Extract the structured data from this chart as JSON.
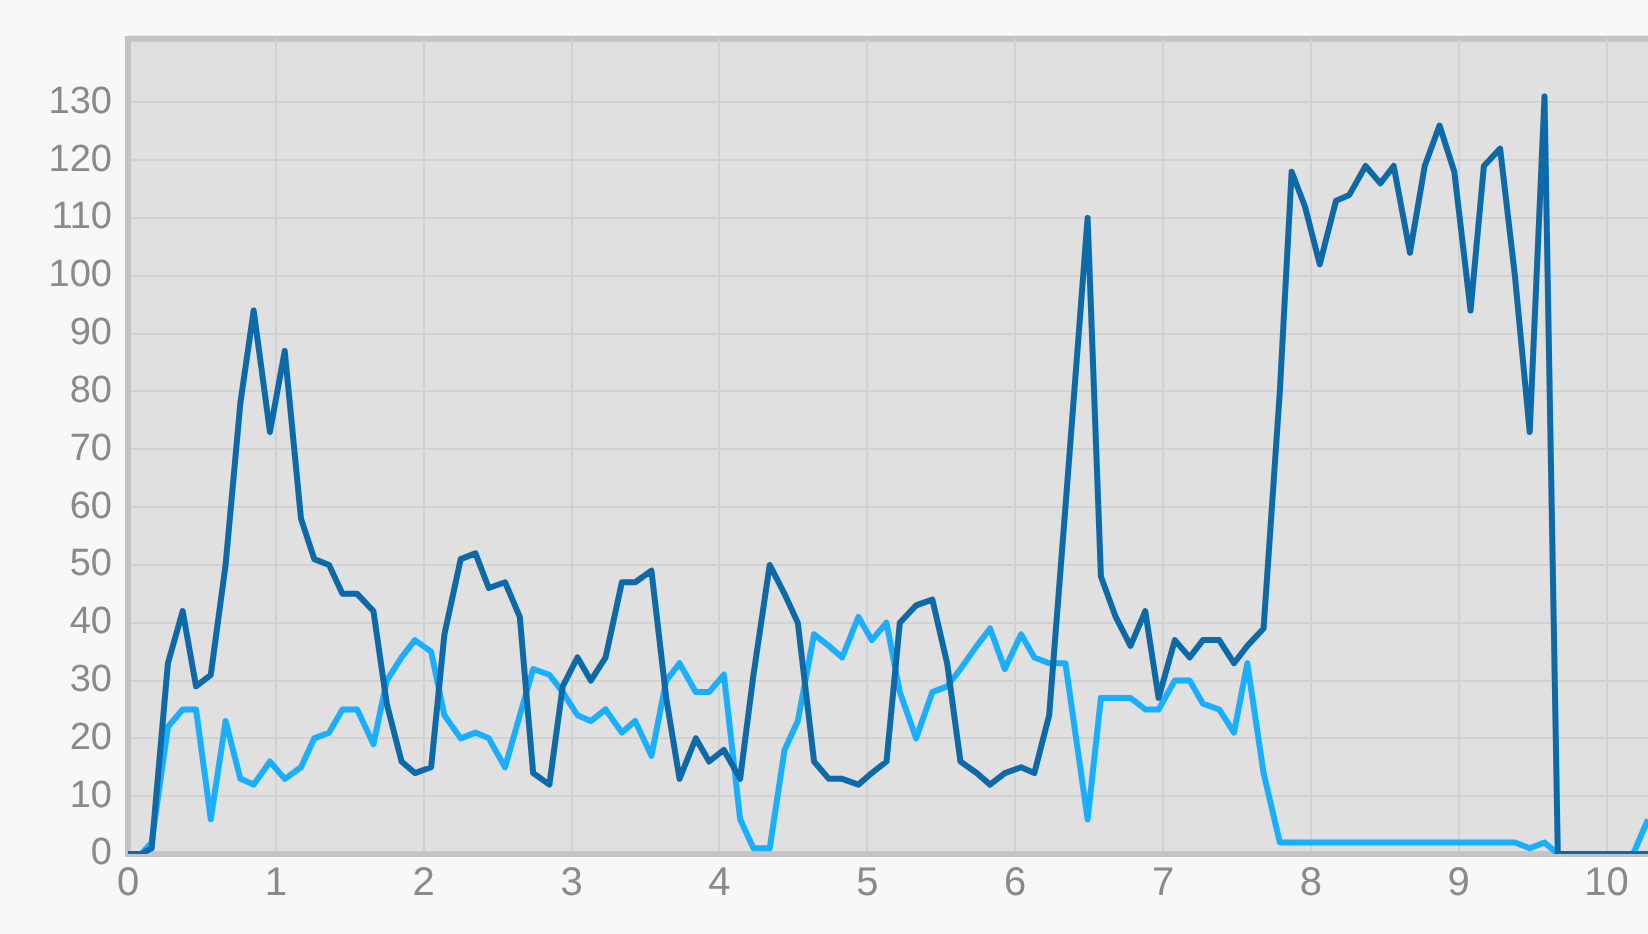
{
  "chart_data": {
    "type": "line",
    "x": [
      0,
      0.09,
      0.16,
      0.27,
      0.37,
      0.46,
      0.56,
      0.66,
      0.76,
      0.85,
      0.96,
      1.06,
      1.17,
      1.26,
      1.36,
      1.45,
      1.55,
      1.66,
      1.75,
      1.85,
      1.94,
      2.05,
      2.14,
      2.25,
      2.35,
      2.44,
      2.55,
      2.65,
      2.74,
      2.85,
      2.94,
      3.04,
      3.13,
      3.23,
      3.34,
      3.43,
      3.54,
      3.64,
      3.73,
      3.84,
      3.93,
      4.03,
      4.14,
      4.23,
      4.34,
      4.44,
      4.53,
      4.64,
      4.74,
      4.83,
      4.94,
      5.03,
      5.13,
      5.22,
      5.33,
      5.44,
      5.54,
      5.63,
      5.74,
      5.83,
      5.93,
      6.04,
      6.13,
      6.23,
      6.34,
      6.49,
      6.58,
      6.68,
      6.78,
      6.88,
      6.97,
      7.08,
      7.18,
      7.27,
      7.38,
      7.48,
      7.57,
      7.68,
      7.79,
      7.87,
      7.96,
      8.06,
      8.17,
      8.26,
      8.37,
      8.47,
      8.56,
      8.67,
      8.77,
      8.87,
      8.97,
      9.08,
      9.17,
      9.28,
      9.38,
      9.48,
      9.58,
      9.67,
      9.78,
      9.88,
      9.97,
      10.08,
      10.18,
      10.28
    ],
    "series": [
      {
        "color": "#0d6aa8",
        "values": [
          0,
          0,
          1,
          33,
          42,
          29,
          31,
          50,
          78,
          94,
          73,
          87,
          58,
          51,
          50,
          45,
          45,
          42,
          26,
          16,
          14,
          15,
          38,
          51,
          52,
          46,
          47,
          41,
          14,
          12,
          29,
          34,
          30,
          34,
          47,
          47,
          49,
          27,
          13,
          20,
          16,
          18,
          13,
          31,
          50,
          45,
          40,
          16,
          13,
          13,
          12,
          14,
          16,
          40,
          43,
          44,
          33,
          16,
          14,
          12,
          14,
          15,
          14,
          24,
          60,
          110,
          48,
          41,
          36,
          42,
          27,
          37,
          34,
          37,
          37,
          33,
          36,
          39,
          80,
          118,
          112,
          102,
          113,
          114,
          119,
          116,
          119,
          104,
          119,
          126,
          118,
          94,
          119,
          122,
          100,
          73,
          131,
          0,
          0,
          0,
          0,
          0,
          0,
          0
        ]
      },
      {
        "color": "#1aaeff",
        "values": [
          0,
          0,
          2,
          22,
          25,
          25,
          6,
          23,
          13,
          12,
          16,
          13,
          15,
          20,
          21,
          25,
          25,
          19,
          30,
          34,
          37,
          35,
          24,
          20,
          21,
          20,
          15,
          24,
          32,
          31,
          28,
          24,
          23,
          25,
          21,
          23,
          17,
          30,
          33,
          28,
          28,
          31,
          6,
          1,
          1,
          18,
          23,
          38,
          36,
          34,
          41,
          37,
          40,
          28,
          20,
          28,
          29,
          32,
          36,
          39,
          32,
          38,
          34,
          33,
          33,
          6,
          27,
          27,
          27,
          25,
          25,
          30,
          30,
          26,
          25,
          21,
          33,
          14,
          2,
          2,
          2,
          2,
          2,
          2,
          2,
          2,
          2,
          2,
          2,
          2,
          2,
          2,
          2,
          2,
          2,
          1,
          2,
          0,
          0,
          0,
          0,
          0,
          0,
          6
        ]
      }
    ],
    "xlim": [
      0,
      10.28
    ],
    "xticks": [
      0,
      1,
      2,
      3,
      4,
      5,
      6,
      7,
      8,
      9,
      10
    ],
    "ylim": [
      0,
      141
    ],
    "yticks": [
      0,
      10,
      20,
      30,
      40,
      50,
      60,
      70,
      80,
      90,
      100,
      110,
      120,
      130
    ],
    "grid": true,
    "marker": "none",
    "line_style": "solid",
    "legend": false
  }
}
